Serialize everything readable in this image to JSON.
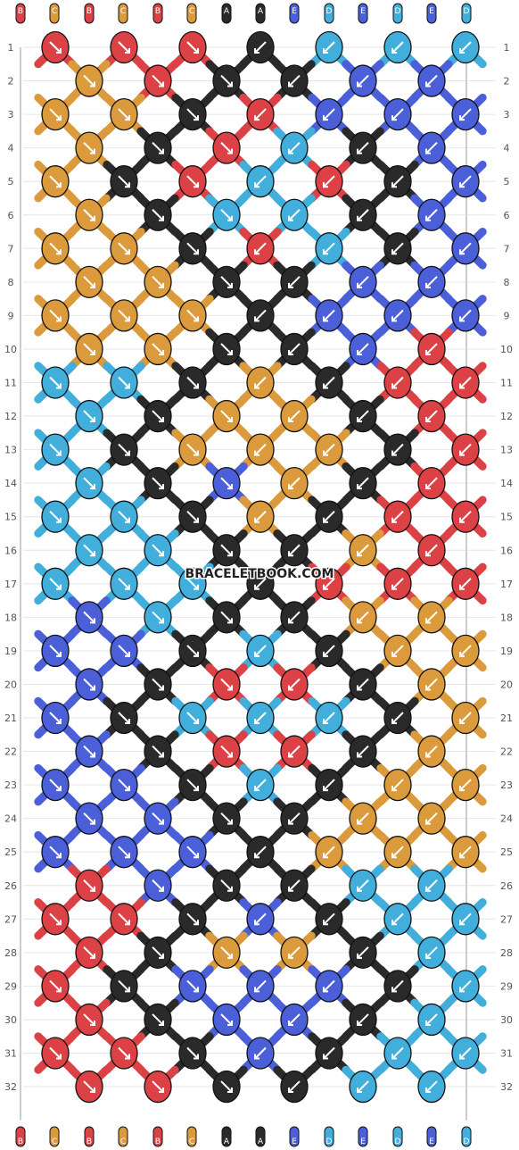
{
  "colors": {
    "B": "#dc4245",
    "C": "#db9a3c",
    "A": "#2a2a2a",
    "E": "#4a5fd8",
    "D": "#41aedb"
  },
  "strings_top": [
    "B",
    "C",
    "B",
    "C",
    "B",
    "C",
    "A",
    "A",
    "E",
    "D",
    "E",
    "D",
    "E",
    "D"
  ],
  "strings_bottom": [
    "B",
    "C",
    "B",
    "C",
    "B",
    "C",
    "A",
    "A",
    "E",
    "D",
    "E",
    "D",
    "E",
    "D"
  ],
  "rows": [
    "1",
    "2",
    "3",
    "4",
    "5",
    "6",
    "7",
    "8",
    "9",
    "10",
    "11",
    "12",
    "13",
    "14",
    "15",
    "16",
    "17",
    "18",
    "19",
    "20",
    "21",
    "22",
    "23",
    "24",
    "25",
    "26",
    "27",
    "28",
    "29",
    "30",
    "31",
    "32"
  ],
  "knots": {
    "odd_rows": [
      [
        "B",
        "B",
        "B",
        "A",
        "D",
        "D",
        "D"
      ],
      [
        "C",
        "C",
        "A",
        "B",
        "E",
        "E",
        "E"
      ],
      [
        "C",
        "A",
        "B",
        "D",
        "B",
        "A",
        "E"
      ],
      [
        "C",
        "C",
        "A",
        "B",
        "D",
        "A",
        "E"
      ],
      [
        "C",
        "C",
        "C",
        "A",
        "E",
        "E",
        "E"
      ],
      [
        "D",
        "D",
        "A",
        "C",
        "A",
        "B",
        "B"
      ],
      [
        "D",
        "A",
        "C",
        "C",
        "C",
        "A",
        "B"
      ],
      [
        "D",
        "D",
        "A",
        "C",
        "A",
        "B",
        "B"
      ],
      [
        "D",
        "D",
        "D",
        "A",
        "B",
        "B",
        "B"
      ],
      [
        "E",
        "E",
        "A",
        "D",
        "A",
        "C",
        "C"
      ],
      [
        "E",
        "A",
        "D",
        "D",
        "D",
        "A",
        "C"
      ],
      [
        "E",
        "E",
        "A",
        "D",
        "A",
        "C",
        "C"
      ],
      [
        "E",
        "E",
        "E",
        "A",
        "C",
        "C",
        "C"
      ],
      [
        "B",
        "B",
        "A",
        "E",
        "A",
        "D",
        "D"
      ],
      [
        "B",
        "A",
        "E",
        "E",
        "E",
        "A",
        "D"
      ],
      [
        "B",
        "B",
        "A",
        "E",
        "A",
        "D",
        "D"
      ]
    ],
    "even_rows": [
      [
        "C",
        "B",
        "A",
        "A",
        "E",
        "E"
      ],
      [
        "C",
        "A",
        "B",
        "D",
        "A",
        "E"
      ],
      [
        "C",
        "A",
        "D",
        "D",
        "A",
        "E"
      ],
      [
        "C",
        "C",
        "A",
        "A",
        "E",
        "E"
      ],
      [
        "C",
        "C",
        "A",
        "A",
        "E",
        "B"
      ],
      [
        "D",
        "A",
        "C",
        "C",
        "A",
        "B"
      ],
      [
        "D",
        "A",
        "E",
        "C",
        "A",
        "B"
      ],
      [
        "D",
        "D",
        "A",
        "A",
        "C",
        "B"
      ],
      [
        "E",
        "D",
        "A",
        "A",
        "C",
        "C"
      ],
      [
        "E",
        "A",
        "B",
        "B",
        "A",
        "C"
      ],
      [
        "E",
        "A",
        "B",
        "B",
        "A",
        "C"
      ],
      [
        "E",
        "E",
        "A",
        "A",
        "C",
        "C"
      ],
      [
        "B",
        "E",
        "A",
        "A",
        "D",
        "D"
      ],
      [
        "B",
        "A",
        "C",
        "C",
        "A",
        "D"
      ],
      [
        "B",
        "A",
        "E",
        "E",
        "A",
        "D"
      ],
      [
        "B",
        "B",
        "A",
        "A",
        "D",
        "D"
      ]
    ]
  },
  "watermark": "BRACELETBOOK.COM"
}
